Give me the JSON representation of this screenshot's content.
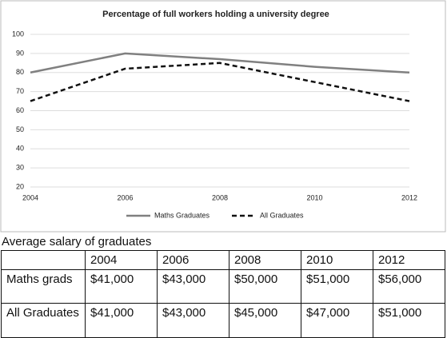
{
  "chart_data": {
    "type": "line",
    "title": "Percentage of full workers holding a university degree",
    "x": [
      2004,
      2006,
      2008,
      2010,
      2012
    ],
    "xlim": [
      2004,
      2012
    ],
    "xticks": [
      2004,
      2006,
      2008,
      2010,
      2012
    ],
    "ylim": [
      20,
      100
    ],
    "yticks": [
      20,
      30,
      40,
      50,
      60,
      70,
      80,
      90,
      100
    ],
    "grid": true,
    "legend": "bottom",
    "series": [
      {
        "name": "Maths Graduates",
        "color": "#808080",
        "dash": "solid",
        "values": [
          80,
          90,
          87,
          83,
          80
        ]
      },
      {
        "name": "All Graduates",
        "color": "#111111",
        "dash": "dashed",
        "values": [
          65,
          82,
          85,
          75,
          65
        ]
      }
    ]
  },
  "table": {
    "title": "Average salary of graduates",
    "columns": [
      "2004",
      "2006",
      "2008",
      "2010",
      "2012"
    ],
    "rows": [
      {
        "label": "Maths grads",
        "cells": [
          "$41,000",
          "$43,000",
          "$50,000",
          "$51,000",
          "$56,000"
        ]
      },
      {
        "label": "All Graduates",
        "cells": [
          "$41,000",
          "$43,000",
          "$45,000",
          "$47,000",
          "$51,000"
        ]
      }
    ]
  }
}
